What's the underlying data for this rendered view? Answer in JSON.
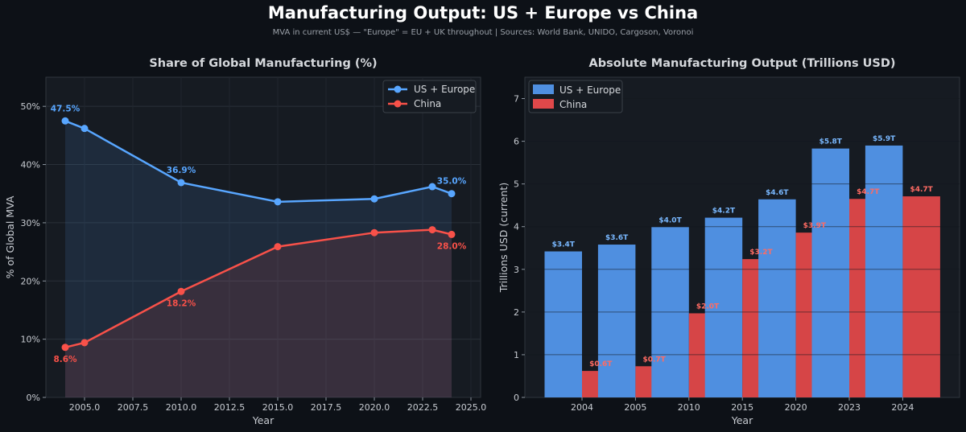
{
  "title": "Manufacturing Output: US + Europe  vs  China",
  "subtitle": "MVA in current US$ — \"Europe\" = EU + UK throughout  |  Sources: World Bank, UNIDO, Cargoson, Voronoi",
  "colors": {
    "us": "#58a6ff",
    "china": "#f85149",
    "us_bar": "#4f8fe0",
    "china_bar": "#e0484a"
  },
  "chart_data": [
    {
      "type": "line",
      "title": "Share of Global Manufacturing (%)",
      "xlabel": "Year",
      "ylabel": "% of Global MVA",
      "xlim": [
        2003.0,
        2025.5
      ],
      "ylim": [
        0,
        55
      ],
      "x_ticks": [
        2005.0,
        2007.5,
        2010.0,
        2012.5,
        2015.0,
        2017.5,
        2020.0,
        2022.5,
        2025.0
      ],
      "x_tick_labels": [
        "2005.0",
        "2007.5",
        "2010.0",
        "2012.5",
        "2015.0",
        "2017.5",
        "2020.0",
        "2022.5",
        "2025.0"
      ],
      "y_ticks": [
        0,
        10,
        20,
        30,
        40,
        50
      ],
      "y_tick_labels": [
        "0%",
        "10%",
        "20%",
        "30%",
        "40%",
        "50%"
      ],
      "x": [
        2004,
        2005,
        2010,
        2015,
        2020,
        2023,
        2024
      ],
      "series": [
        {
          "name": "US + Europe",
          "values": [
            47.5,
            46.2,
            36.9,
            33.6,
            34.1,
            36.2,
            35.0
          ]
        },
        {
          "name": "China",
          "values": [
            8.6,
            9.4,
            18.2,
            25.9,
            28.3,
            28.8,
            28.0
          ]
        }
      ],
      "annotations": [
        {
          "series": 0,
          "x": 2004,
          "text": "47.5%",
          "pos": "above"
        },
        {
          "series": 0,
          "x": 2010,
          "text": "36.9%",
          "pos": "above"
        },
        {
          "series": 0,
          "x": 2024,
          "text": "35.0%",
          "pos": "above"
        },
        {
          "series": 1,
          "x": 2004,
          "text": "8.6%",
          "pos": "below"
        },
        {
          "series": 1,
          "x": 2010,
          "text": "18.2%",
          "pos": "below"
        },
        {
          "series": 1,
          "x": 2024,
          "text": "28.0%",
          "pos": "below"
        }
      ],
      "legend": [
        "US + Europe",
        "China"
      ],
      "legend_position": "top-right",
      "grid": true
    },
    {
      "type": "bar",
      "title": "Absolute Manufacturing Output (Trillions USD)",
      "xlabel": "Year",
      "ylabel": "Trillions USD (current)",
      "ylim": [
        0,
        7.5
      ],
      "y_ticks": [
        0,
        1,
        2,
        3,
        4,
        5,
        6,
        7
      ],
      "y_tick_labels": [
        "0",
        "1",
        "2",
        "3",
        "4",
        "5",
        "6",
        "7"
      ],
      "categories": [
        "2004",
        "2005",
        "2010",
        "2015",
        "2020",
        "2023",
        "2024"
      ],
      "series": [
        {
          "name": "US + Europe",
          "values": [
            3.42,
            3.58,
            3.99,
            4.21,
            4.64,
            5.83,
            5.9
          ],
          "labels": [
            "$3.4T",
            "$3.6T",
            "$4.0T",
            "$4.2T",
            "$4.6T",
            "$5.8T",
            "$5.9T"
          ]
        },
        {
          "name": "China",
          "values": [
            0.62,
            0.73,
            1.97,
            3.24,
            3.86,
            4.65,
            4.71
          ],
          "labels": [
            "$0.6T",
            "$0.7T",
            "$2.0T",
            "$3.2T",
            "$3.9T",
            "$4.7T",
            "$4.7T"
          ]
        }
      ],
      "legend": [
        "US + Europe",
        "China"
      ],
      "legend_position": "top-left",
      "grid": true
    }
  ]
}
